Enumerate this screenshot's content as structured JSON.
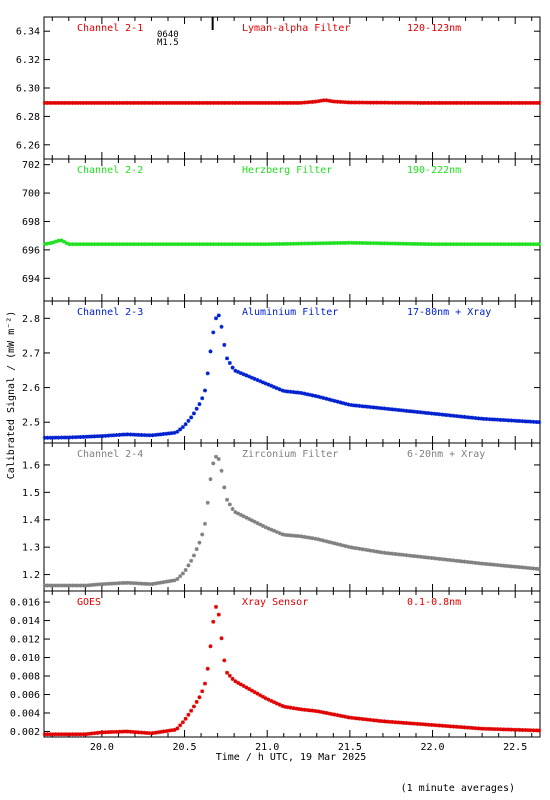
{
  "footer_note": "(1 minute averages)",
  "chart_data": {
    "type": "scatter",
    "xlabel": "Time / h UTC, 19 Mar 2025",
    "ylabel": "Calibrated Signal / (mW m⁻²)",
    "xlim": [
      19.65,
      22.65
    ],
    "x_ticks": [
      "20.0",
      "20.5",
      "21.0",
      "21.5",
      "22.0",
      "22.5"
    ],
    "grid": false,
    "marker": "*",
    "annotation": {
      "x": 20.67,
      "lines": [
        "0640",
        "M1.5"
      ]
    },
    "panels": [
      {
        "name": "Channel 2-1",
        "filter": "Lyman-alpha Filter",
        "band": "120-123nm",
        "color": "#e00000",
        "ylim": [
          6.25,
          6.35
        ],
        "y_ticks": [
          "6.26",
          "6.28",
          "6.30",
          "6.32",
          "6.34"
        ],
        "x": [
          19.65,
          20.0,
          20.5,
          21.0,
          21.2,
          21.3,
          21.35,
          21.4,
          21.5,
          22.0,
          22.65
        ],
        "y": [
          6.2895,
          6.2895,
          6.2895,
          6.2895,
          6.2895,
          6.2905,
          6.2915,
          6.2905,
          6.2898,
          6.2895,
          6.2895
        ]
      },
      {
        "name": "Channel 2-2",
        "filter": "Herzberg Filter",
        "band": "190-222nm",
        "color": "#1ee01e",
        "ylim": [
          692.4,
          702.4
        ],
        "y_ticks": [
          "694",
          "696",
          "698",
          "700",
          "702"
        ],
        "x": [
          19.65,
          19.7,
          19.75,
          19.8,
          20.0,
          21.0,
          21.5,
          22.0,
          22.65
        ],
        "y": [
          696.4,
          696.5,
          696.7,
          696.4,
          696.4,
          696.4,
          696.5,
          696.4,
          696.4
        ]
      },
      {
        "name": "Channel 2-3",
        "filter": "Aluminium Filter",
        "band": "17-80nm + Xray",
        "color": "#0020d0",
        "ylim": [
          2.44,
          2.85
        ],
        "y_ticks": [
          "2.5",
          "2.6",
          "2.7",
          "2.8"
        ],
        "x": [
          19.65,
          19.8,
          20.0,
          20.15,
          20.3,
          20.45,
          20.5,
          20.55,
          20.6,
          20.63,
          20.65,
          20.67,
          20.69,
          20.71,
          20.73,
          20.75,
          20.8,
          20.9,
          21.0,
          21.1,
          21.2,
          21.3,
          21.5,
          21.7,
          22.0,
          22.3,
          22.65
        ],
        "y": [
          2.455,
          2.456,
          2.46,
          2.465,
          2.462,
          2.47,
          2.49,
          2.52,
          2.56,
          2.6,
          2.68,
          2.75,
          2.8,
          2.81,
          2.76,
          2.69,
          2.65,
          2.63,
          2.61,
          2.59,
          2.585,
          2.575,
          2.55,
          2.54,
          2.525,
          2.51,
          2.5
        ]
      },
      {
        "name": "Channel 2-4",
        "filter": "Zirconium Filter",
        "band": "6-20nm + Xray",
        "color": "#808080",
        "ylim": [
          1.14,
          1.68
        ],
        "y_ticks": [
          "1.2",
          "1.3",
          "1.4",
          "1.5",
          "1.6"
        ],
        "x": [
          19.65,
          19.9,
          20.0,
          20.15,
          20.3,
          20.45,
          20.5,
          20.55,
          20.6,
          20.63,
          20.65,
          20.67,
          20.69,
          20.71,
          20.73,
          20.75,
          20.8,
          20.9,
          21.0,
          21.1,
          21.2,
          21.3,
          21.5,
          21.7,
          22.0,
          22.3,
          22.65
        ],
        "y": [
          1.16,
          1.16,
          1.165,
          1.17,
          1.165,
          1.18,
          1.21,
          1.26,
          1.33,
          1.4,
          1.52,
          1.6,
          1.63,
          1.62,
          1.56,
          1.48,
          1.43,
          1.4,
          1.37,
          1.345,
          1.34,
          1.33,
          1.3,
          1.28,
          1.26,
          1.24,
          1.22
        ]
      },
      {
        "name": "GOES",
        "filter": "Xray Sensor",
        "band": "0.1-0.8nm",
        "color": "#e00000",
        "ylim": [
          0.0014,
          0.0172
        ],
        "y_ticks": [
          "0.002",
          "0.004",
          "0.006",
          "0.008",
          "0.010",
          "0.012",
          "0.014",
          "0.016"
        ],
        "x": [
          19.65,
          19.9,
          20.0,
          20.15,
          20.3,
          20.45,
          20.5,
          20.55,
          20.6,
          20.63,
          20.65,
          20.67,
          20.69,
          20.71,
          20.73,
          20.75,
          20.8,
          20.9,
          21.0,
          21.1,
          21.2,
          21.3,
          21.5,
          21.7,
          22.0,
          22.3,
          22.65
        ],
        "y": [
          0.0017,
          0.0017,
          0.0019,
          0.002,
          0.0018,
          0.0022,
          0.0032,
          0.0045,
          0.006,
          0.0075,
          0.01,
          0.0135,
          0.0155,
          0.0145,
          0.011,
          0.0085,
          0.0075,
          0.0065,
          0.0055,
          0.0047,
          0.0044,
          0.0042,
          0.0035,
          0.0031,
          0.0027,
          0.0023,
          0.0021
        ]
      }
    ]
  }
}
